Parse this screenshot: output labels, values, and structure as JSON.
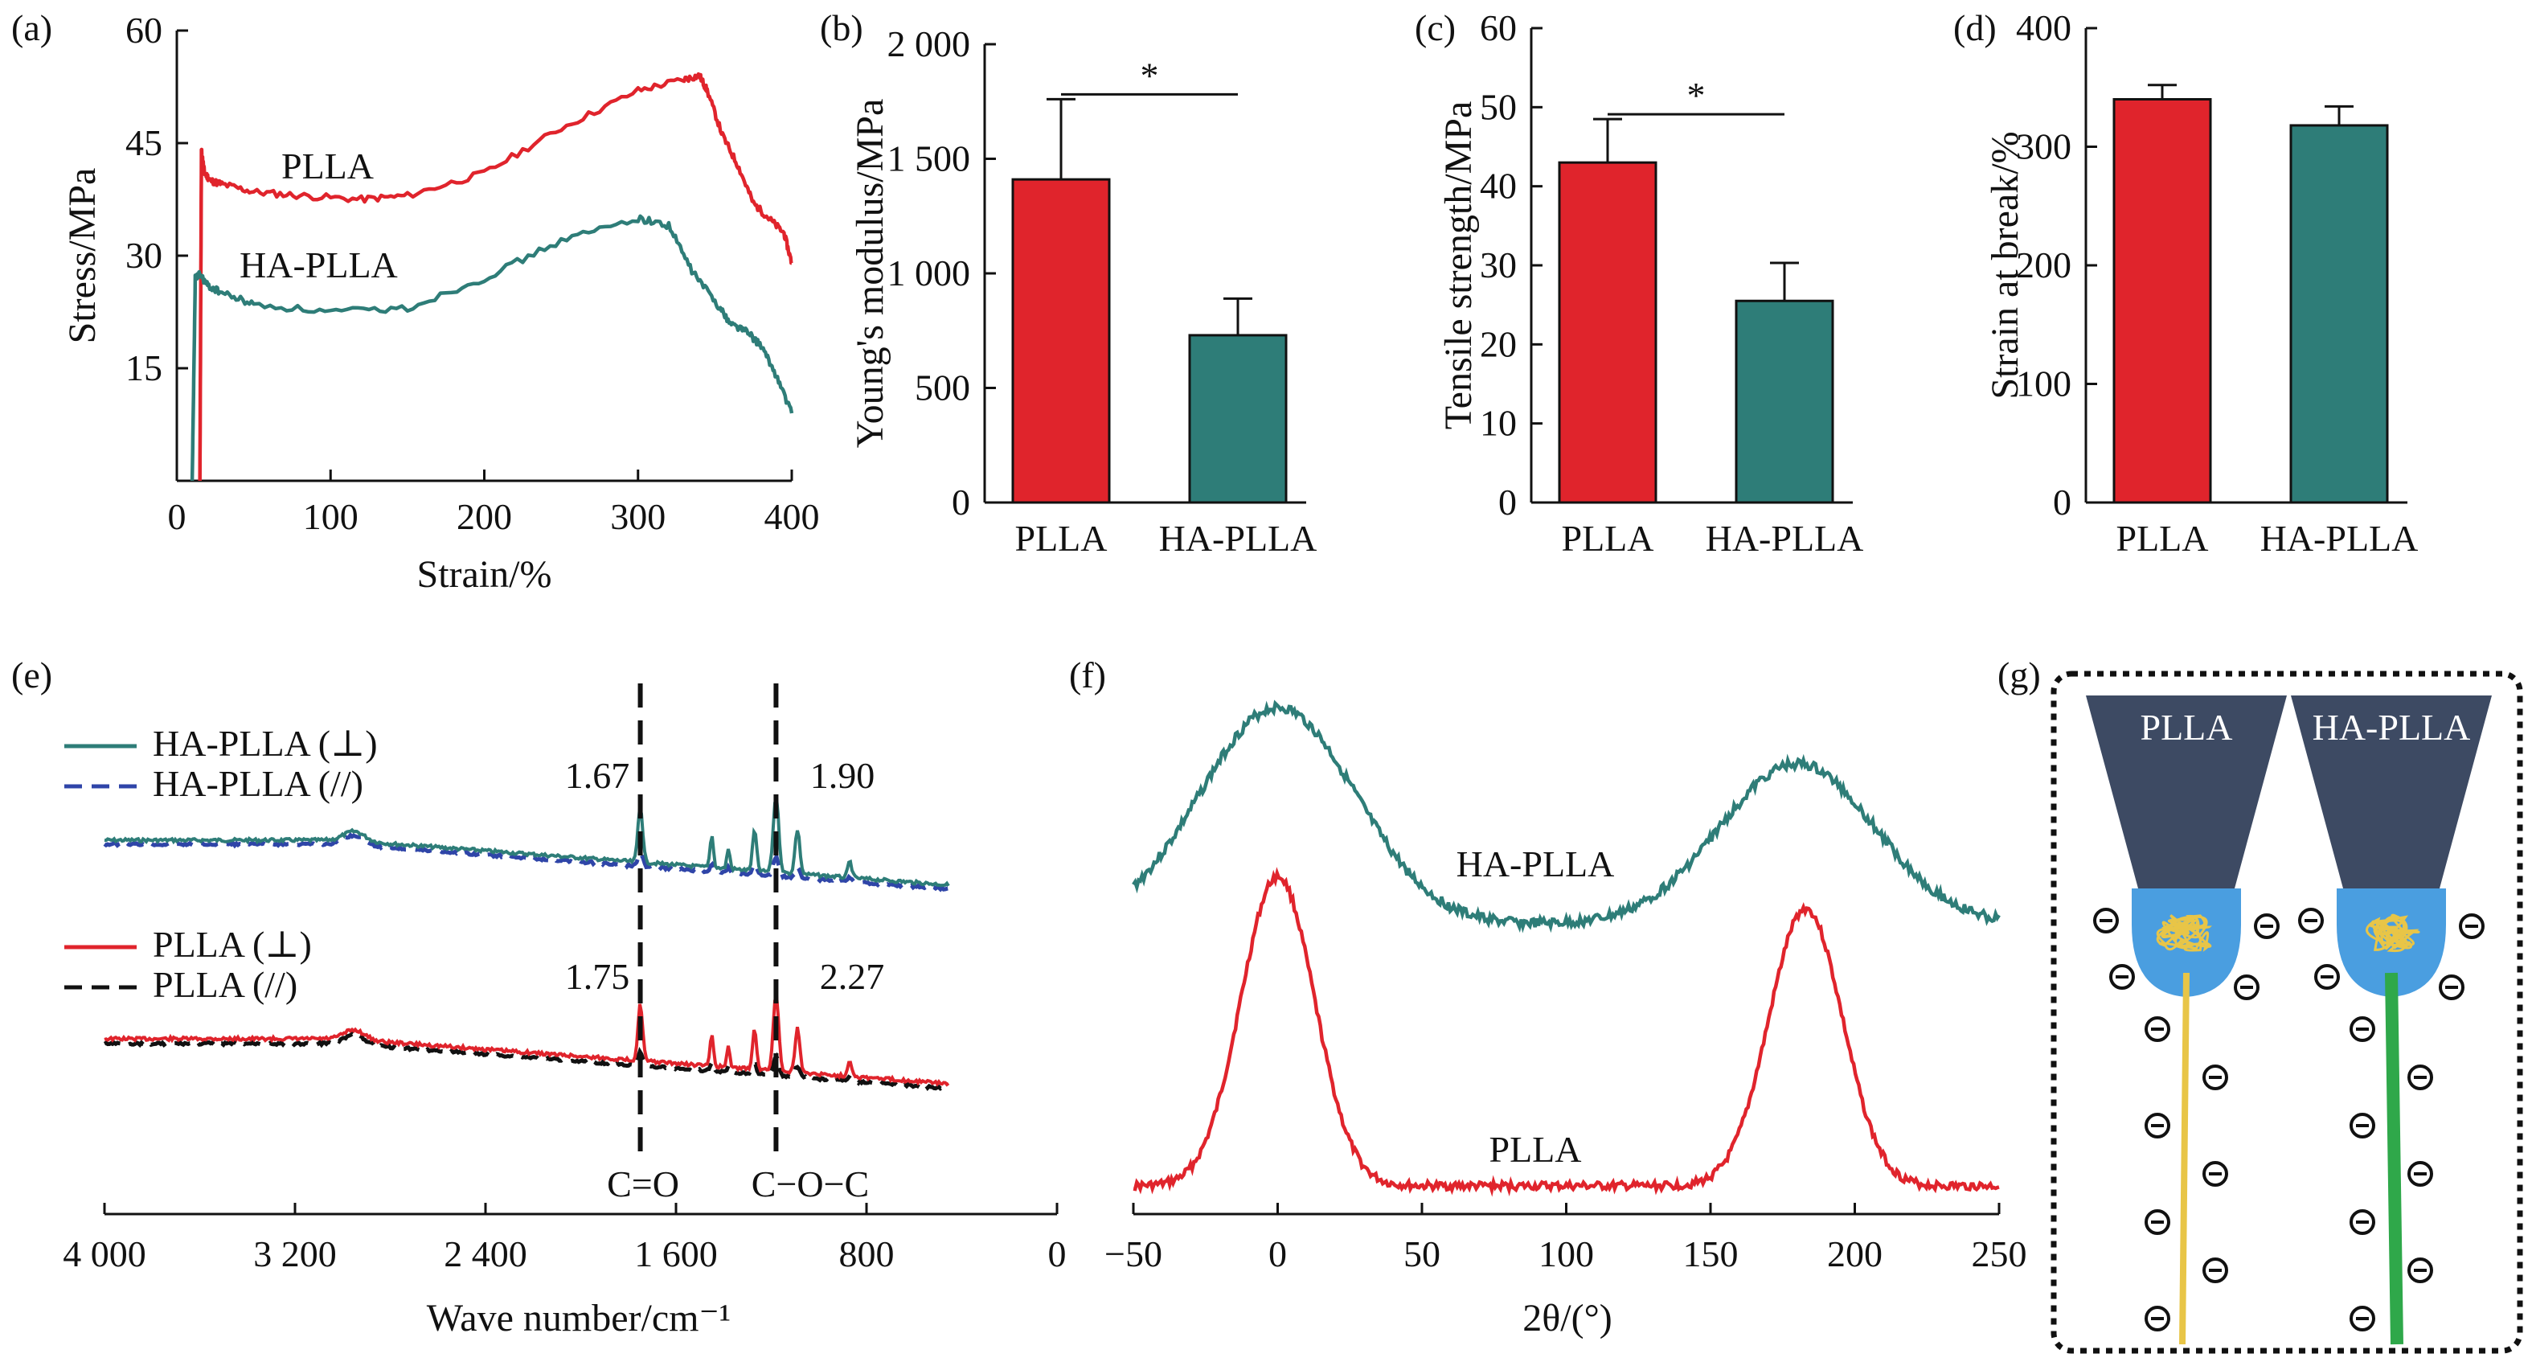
{
  "colors": {
    "plla": "#e0242c",
    "hapla": "#2e7d78",
    "dash_blue": "#2f45a8",
    "dash_black": "#111111",
    "nozzle": "#3d4a63",
    "droplet": "#4a9ee0",
    "fiber_yellow": "#e8c547",
    "fiber_green": "#2fa84a"
  },
  "chart_data": [
    {
      "panel": "(a)",
      "type": "line",
      "xlabel": "Strain/%",
      "ylabel": "Stress/MPa",
      "xlim": [
        0,
        400
      ],
      "ylim": [
        0,
        60
      ],
      "xticks": [
        "0",
        "100",
        "200",
        "300",
        "400"
      ],
      "yticks": [
        "15",
        "30",
        "45",
        "60"
      ],
      "series": [
        {
          "name": "PLLA",
          "color": "#e0242c",
          "x": [
            15,
            16,
            18,
            22,
            30,
            50,
            80,
            120,
            150,
            200,
            250,
            300,
            330,
            340,
            345,
            355,
            365,
            375,
            385,
            395,
            400
          ],
          "y": [
            0,
            44,
            41,
            40,
            39.5,
            38.5,
            38,
            37.5,
            38,
            41,
            47,
            52,
            53.5,
            54,
            52,
            46,
            42,
            37,
            35,
            33,
            29
          ]
        },
        {
          "name": "HA-PLLA",
          "color": "#2e7d78",
          "x": [
            10,
            12,
            15,
            20,
            30,
            50,
            100,
            150,
            200,
            250,
            300,
            320,
            335,
            350,
            360,
            370,
            380,
            390,
            400
          ],
          "y": [
            0,
            27,
            27.5,
            26,
            25,
            23.5,
            22.5,
            23,
            27,
            32,
            35,
            34,
            28,
            24,
            21,
            20,
            18,
            14,
            9
          ]
        }
      ]
    },
    {
      "panel": "(b)",
      "type": "bar",
      "ylabel": "Young's modulus/MPa",
      "ylim": [
        0,
        2000
      ],
      "yticks": [
        "0",
        "500",
        "1 000",
        "1 500",
        "2 000"
      ],
      "categories": [
        "PLLA",
        "HA-PLLA"
      ],
      "values": [
        1410,
        730
      ],
      "errors": [
        350,
        160
      ],
      "significance": "*"
    },
    {
      "panel": "(c)",
      "type": "bar",
      "ylabel": "Tensile strength/MPa",
      "ylim": [
        0,
        60
      ],
      "yticks": [
        "0",
        "10",
        "20",
        "30",
        "40",
        "50",
        "60"
      ],
      "categories": [
        "PLLA",
        "HA-PLLA"
      ],
      "values": [
        43,
        25.5
      ],
      "errors": [
        5.5,
        4.8
      ],
      "significance": "*"
    },
    {
      "panel": "(d)",
      "type": "bar",
      "ylabel": "Strain at break/%",
      "ylim": [
        0,
        400
      ],
      "yticks": [
        "0",
        "100",
        "200",
        "300",
        "400"
      ],
      "categories": [
        "PLLA",
        "HA-PLLA"
      ],
      "values": [
        340,
        318
      ],
      "errors": [
        12,
        16
      ]
    },
    {
      "panel": "(e)",
      "type": "line",
      "xlabel": "Wave number/cm⁻¹",
      "xlim": [
        4000,
        0
      ],
      "xticks": [
        "4 000",
        "3 200",
        "2 400",
        "1 600",
        "800",
        "0"
      ],
      "legend": [
        "HA-PLLA (⊥)",
        "HA-PLLA (//)",
        "PLLA (⊥)",
        "PLLA (//)"
      ],
      "annotations": [
        "1.67",
        "1.90",
        "1.75",
        "2.27",
        "C=O",
        "C−O−C"
      ],
      "band_positions": [
        1750,
        1180
      ],
      "series": [
        {
          "name": "HA-PLLA (⊥)",
          "color": "#2e7d78"
        },
        {
          "name": "HA-PLLA (//)",
          "color": "#2f45a8"
        },
        {
          "name": "PLLA (⊥)",
          "color": "#e0242c"
        },
        {
          "name": "PLLA (//)",
          "color": "#111111"
        }
      ]
    },
    {
      "panel": "(f)",
      "type": "line",
      "xlabel": "2θ/(°)",
      "xlim": [
        -50,
        250
      ],
      "xticks": [
        "−50",
        "0",
        "50",
        "100",
        "150",
        "200",
        "250"
      ],
      "series": [
        {
          "name": "HA-PLLA",
          "color": "#2e7d78",
          "peaks": [
            0,
            180
          ]
        },
        {
          "name": "PLLA",
          "color": "#e0242c",
          "peaks": [
            0,
            183
          ]
        }
      ]
    }
  ],
  "schematic": {
    "panel": "(g)",
    "labels": [
      "PLLA",
      "HA-PLLA"
    ],
    "charge_symbol": "⊖"
  }
}
